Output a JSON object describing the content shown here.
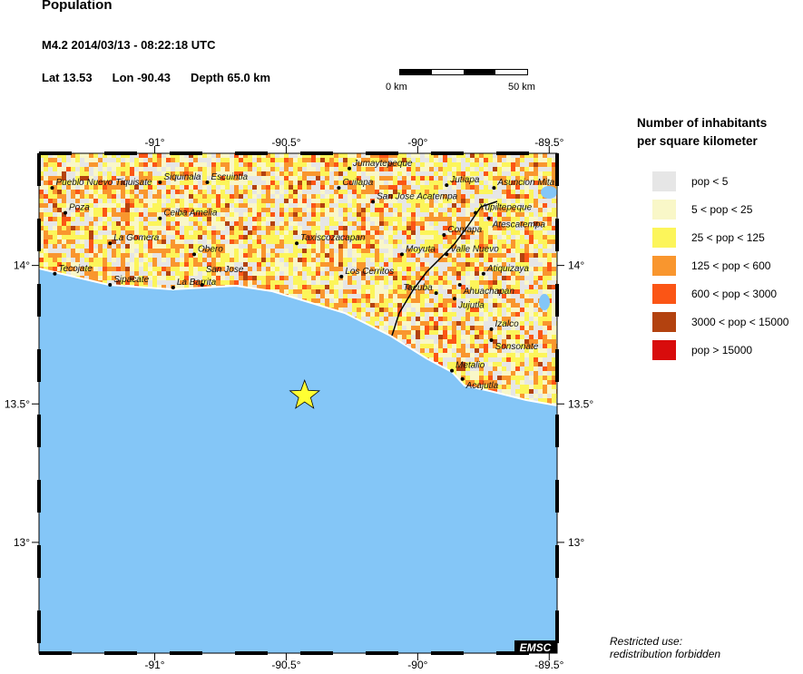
{
  "header": {
    "title": "Population",
    "event": "M4.2  2014/03/13 - 08:22:18 UTC",
    "lat": "Lat 13.53",
    "lon": "Lon -90.43",
    "depth": "Depth  65.0 km"
  },
  "scale": {
    "start": "0 km",
    "end": "50 km"
  },
  "legend": {
    "title1": "Number of inhabitants",
    "title2": "per square kilometer",
    "items": [
      {
        "label": "pop < 5",
        "color": "#e6e6e6"
      },
      {
        "label": "5 < pop < 25",
        "color": "#f9f7c8"
      },
      {
        "label": "25 < pop < 125",
        "color": "#fcf55a"
      },
      {
        "label": "125 < pop < 600",
        "color": "#f9962e"
      },
      {
        "label": "600 < pop < 3000",
        "color": "#fb5515"
      },
      {
        "label": "3000 < pop < 15000",
        "color": "#b3420f"
      },
      {
        "label": "pop > 15000",
        "color": "#d80c0c"
      }
    ]
  },
  "map": {
    "lon_range": [
      -91.44,
      -89.47
    ],
    "lat_range": [
      12.6,
      14.405
    ],
    "lon_ticks": [
      {
        "v": -91,
        "label": "-91°"
      },
      {
        "v": -90.5,
        "label": "-90.5°"
      },
      {
        "v": -90,
        "label": "-90°"
      },
      {
        "v": -89.5,
        "label": "-89.5°"
      }
    ],
    "lat_ticks": [
      {
        "v": 14,
        "label": "14°"
      },
      {
        "v": 13.5,
        "label": "13.5°"
      },
      {
        "v": 13,
        "label": "13°"
      }
    ],
    "sea_color": "#84c6f7",
    "epicenter": {
      "lon": -90.43,
      "lat": 13.53,
      "color": "#ffff33",
      "icon": "star-icon"
    },
    "logo": "EMSC",
    "cities": [
      {
        "name": "Pueblo Nuevo Tiquisate",
        "lon": -91.39,
        "lat": 14.28
      },
      {
        "name": "Siquinala",
        "lon": -90.98,
        "lat": 14.3
      },
      {
        "name": "Escuintla",
        "lon": -90.8,
        "lat": 14.3
      },
      {
        "name": "Poza",
        "lon": -91.34,
        "lat": 14.19
      },
      {
        "name": "Ceiba Amelia",
        "lon": -90.98,
        "lat": 14.17
      },
      {
        "name": "La Gomera",
        "lon": -91.17,
        "lat": 14.08
      },
      {
        "name": "Obero",
        "lon": -90.85,
        "lat": 14.04
      },
      {
        "name": "Tecojate",
        "lon": -91.38,
        "lat": 13.97
      },
      {
        "name": "Sipacate",
        "lon": -91.17,
        "lat": 13.93
      },
      {
        "name": "La Barrita",
        "lon": -90.93,
        "lat": 13.92
      },
      {
        "name": "San Jose",
        "lon": -90.82,
        "lat": 13.93
      },
      {
        "name": "Jumaytepeque",
        "lon": -90.26,
        "lat": 14.35
      },
      {
        "name": "Cuilapa",
        "lon": -90.3,
        "lat": 14.28
      },
      {
        "name": "San Jose Acatempa",
        "lon": -90.17,
        "lat": 14.23
      },
      {
        "name": "Jutiapa",
        "lon": -89.89,
        "lat": 14.29
      },
      {
        "name": "Asuncion Mita",
        "lon": -89.71,
        "lat": 14.28
      },
      {
        "name": "Yupiltepeque",
        "lon": -89.78,
        "lat": 14.19
      },
      {
        "name": "Atescatempa",
        "lon": -89.73,
        "lat": 14.17
      },
      {
        "name": "Comapa",
        "lon": -89.9,
        "lat": 14.11
      },
      {
        "name": "Taxiscozacapan",
        "lon": -90.46,
        "lat": 14.08
      },
      {
        "name": "Moyuta",
        "lon": -90.06,
        "lat": 14.04
      },
      {
        "name": "Valle Nuevo",
        "lon": -89.89,
        "lat": 14.04
      },
      {
        "name": "Los Cerritos",
        "lon": -90.29,
        "lat": 13.96
      },
      {
        "name": "Atiquizaya",
        "lon": -89.75,
        "lat": 13.97
      },
      {
        "name": "Ahuachapan",
        "lon": -89.84,
        "lat": 13.93
      },
      {
        "name": "Tacuba",
        "lon": -89.93,
        "lat": 13.9
      },
      {
        "name": "Jujutla",
        "lon": -89.86,
        "lat": 13.88
      },
      {
        "name": "Izalco",
        "lon": -89.72,
        "lat": 13.77
      },
      {
        "name": "Sonsonate",
        "lon": -89.72,
        "lat": 13.73
      },
      {
        "name": "Metalio",
        "lon": -89.87,
        "lat": 13.62
      },
      {
        "name": "Acajutla",
        "lon": -89.83,
        "lat": 13.59
      }
    ]
  },
  "footer": {
    "line1": "Restricted use:",
    "line2": "redistribution forbidden"
  }
}
